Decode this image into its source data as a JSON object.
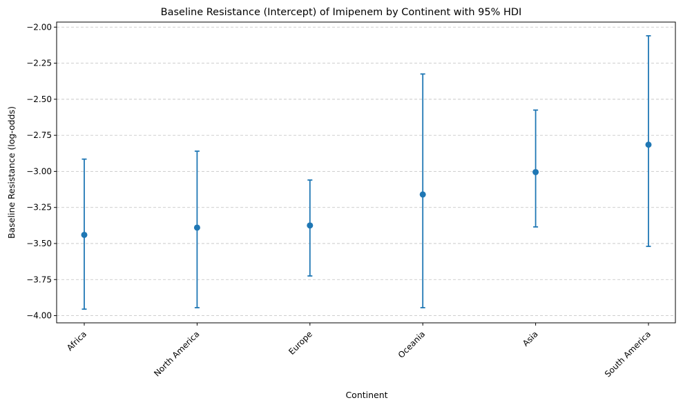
{
  "chart_data": {
    "type": "scatter",
    "subtype": "point-with-error-bars",
    "title": "Baseline Resistance (Intercept) of Imipenem by Continent with 95% HDI",
    "xlabel": "Continent",
    "ylabel": "Baseline Resistance (log-odds)",
    "categories": [
      "Africa",
      "North America",
      "Europe",
      "Oceania",
      "Asia",
      "South America"
    ],
    "values": [
      -3.44,
      -3.39,
      -3.375,
      -3.16,
      -3.005,
      -2.815
    ],
    "lower": [
      -3.955,
      -3.945,
      -3.725,
      -3.945,
      -3.385,
      -3.52
    ],
    "upper": [
      -2.915,
      -2.86,
      -3.06,
      -2.325,
      -2.575,
      -2.06
    ],
    "ylim": [
      -4.05,
      -1.965
    ],
    "yticks": [
      -4.0,
      -3.75,
      -3.5,
      -3.25,
      -3.0,
      -2.75,
      -2.5,
      -2.25,
      -2.0
    ],
    "ytick_labels": [
      "−4.00",
      "−3.75",
      "−3.50",
      "−3.25",
      "−3.00",
      "−2.75",
      "−2.50",
      "−2.25",
      "−2.00"
    ],
    "grid": "y-dashed",
    "color": "#1f77b4"
  }
}
